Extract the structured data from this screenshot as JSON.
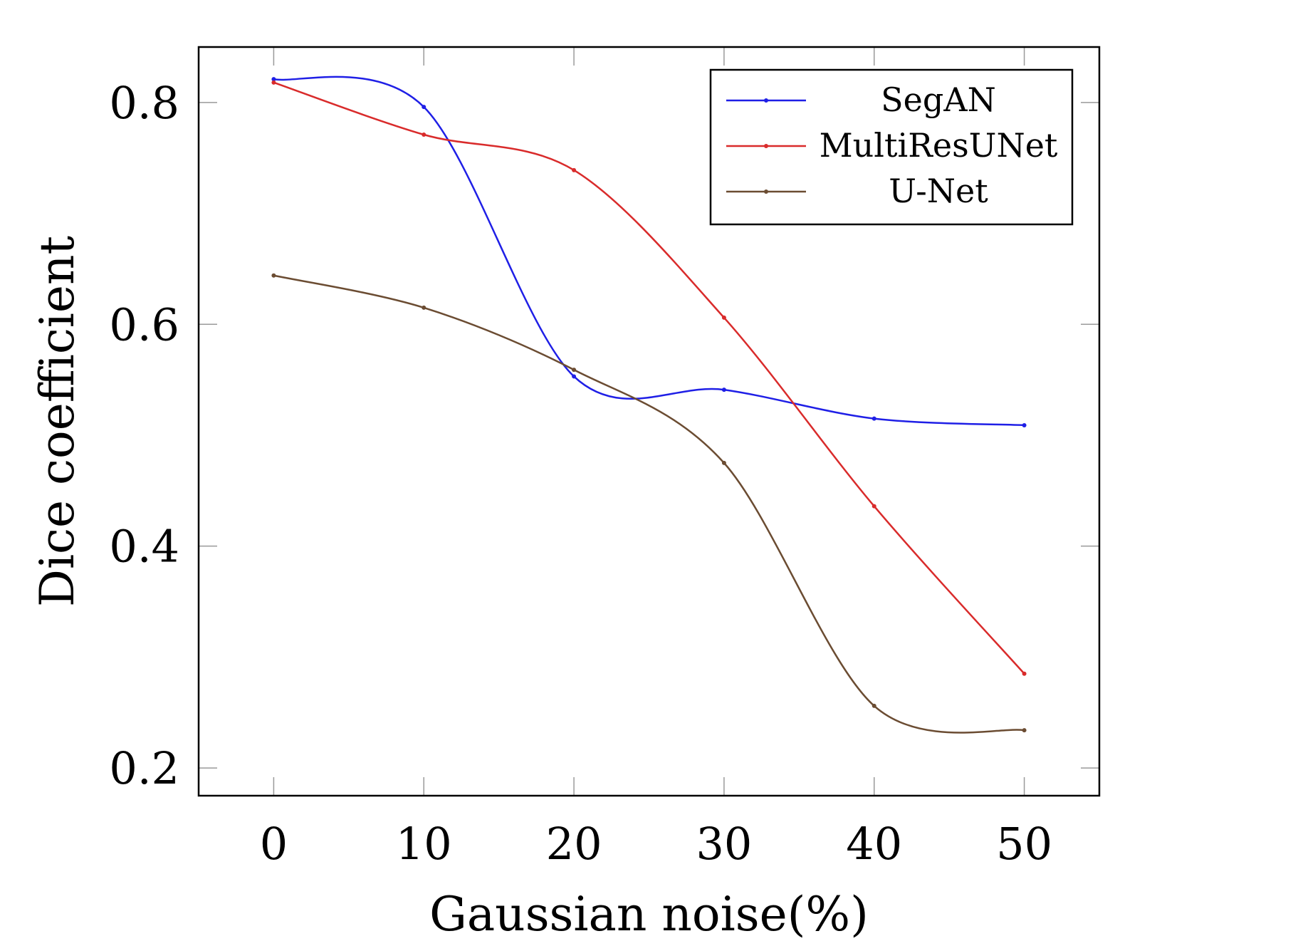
{
  "chart_data": {
    "type": "line",
    "xlabel": "Gaussian noise(%)",
    "ylabel": "Dice coefficient",
    "xlim": [
      -5,
      55
    ],
    "ylim": [
      0.175,
      0.85
    ],
    "x": [
      0,
      10,
      20,
      30,
      40,
      50
    ],
    "x_ticks": [
      "0",
      "10",
      "20",
      "30",
      "40",
      "50"
    ],
    "y_ticks": [
      "0.2",
      "0.4",
      "0.6",
      "0.8"
    ],
    "y_tick_values": [
      0.2,
      0.4,
      0.6,
      0.8
    ],
    "grid": false,
    "legend_position": "top-right",
    "smooth": true,
    "series": [
      {
        "name": "SegAN",
        "color": "#1f1fe6",
        "values": [
          0.821,
          0.796,
          0.553,
          0.541,
          0.515,
          0.509
        ]
      },
      {
        "name": "MultiResUNet",
        "color": "#d92b2b",
        "values": [
          0.818,
          0.771,
          0.739,
          0.606,
          0.436,
          0.285
        ]
      },
      {
        "name": "U-Net",
        "color": "#6b4c32",
        "values": [
          0.644,
          0.615,
          0.559,
          0.475,
          0.256,
          0.234
        ]
      }
    ]
  }
}
